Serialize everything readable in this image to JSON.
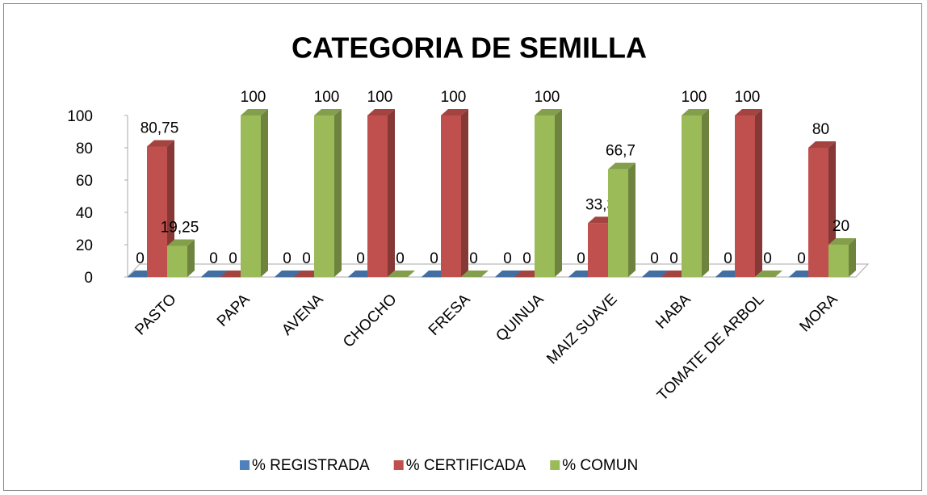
{
  "chart_data": {
    "type": "bar3d",
    "title": "CATEGORIA DE SEMILLA",
    "categories": [
      "PASTO",
      "PAPA",
      "AVENA",
      "CHOCHO",
      "FRESA",
      "QUINUA",
      "MAIZ SUAVE",
      "HABA",
      "TOMATE DE ARBOL",
      "MORA"
    ],
    "series": [
      {
        "name": "% REGISTRADA",
        "color": "#4f81bd",
        "values": [
          0,
          0,
          0,
          0,
          0,
          0,
          0,
          0,
          0,
          0
        ]
      },
      {
        "name": "% CERTIFICADA",
        "color": "#c0504d",
        "values": [
          80.75,
          0,
          0,
          100,
          100,
          0,
          33.3,
          0,
          100,
          80
        ],
        "value_labels": [
          "80,75",
          "0",
          "0",
          "100",
          "100",
          "0",
          "33,3",
          "0",
          "100",
          "80"
        ]
      },
      {
        "name": "% COMUN",
        "color": "#9bbb59",
        "values": [
          19.25,
          100,
          100,
          0,
          0,
          100,
          66.7,
          100,
          0,
          20
        ],
        "value_labels": [
          "19,25",
          "100",
          "100",
          "0",
          "0",
          "100",
          "66,7",
          "100",
          "0",
          "20"
        ]
      }
    ],
    "ylim": [
      0,
      100
    ],
    "yticks": [
      0,
      20,
      40,
      60,
      80,
      100
    ],
    "legend": "bottom"
  }
}
